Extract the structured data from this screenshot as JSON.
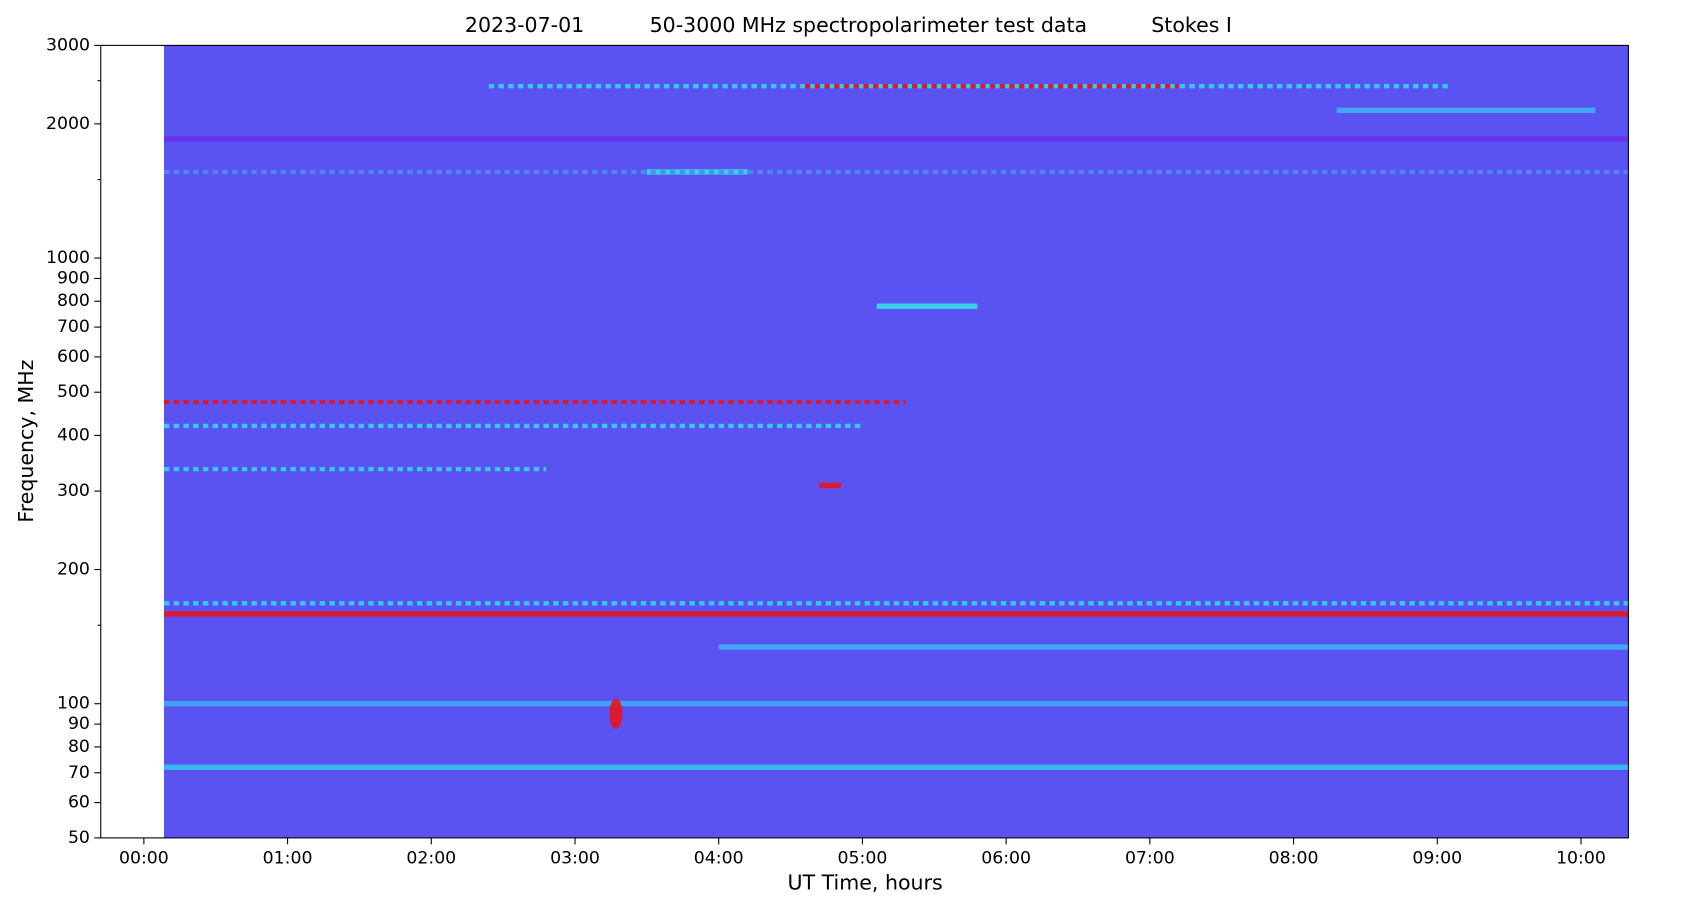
{
  "chart_data": {
    "type": "spectrogram",
    "title_parts": [
      "2023-07-01",
      "50-3000 MHz spectropolarimeter test data",
      "Stokes I"
    ],
    "xlabel": "UT Time, hours",
    "ylabel": "Frequency, MHz",
    "log_y": true,
    "xlim": [
      -0.3,
      10.33
    ],
    "ylim": [
      50,
      3000
    ],
    "xticks": [
      {
        "value": 0,
        "label": "00:00"
      },
      {
        "value": 1,
        "label": "01:00"
      },
      {
        "value": 2,
        "label": "02:00"
      },
      {
        "value": 3,
        "label": "03:00"
      },
      {
        "value": 4,
        "label": "04:00"
      },
      {
        "value": 5,
        "label": "05:00"
      },
      {
        "value": 6,
        "label": "06:00"
      },
      {
        "value": 7,
        "label": "07:00"
      },
      {
        "value": 8,
        "label": "08:00"
      },
      {
        "value": 9,
        "label": "09:00"
      },
      {
        "value": 10,
        "label": "10:00"
      }
    ],
    "yticks": [
      50,
      60,
      70,
      80,
      90,
      100,
      200,
      300,
      400,
      500,
      600,
      700,
      800,
      900,
      1000,
      2000,
      3000
    ],
    "minor_yticks": [
      150,
      1500,
      2500
    ],
    "data_span": [
      0.14,
      10.33
    ],
    "background_color": "#5b52f2",
    "features": [
      {
        "freq": 2430,
        "x": [
          2.4,
          9.1
        ],
        "color": "#2fd8f0",
        "style": "dotted"
      },
      {
        "freq": 2430,
        "x": [
          4.6,
          7.2
        ],
        "color": "#e8141c",
        "style": "dotted"
      },
      {
        "freq": 2145,
        "x": [
          8.3,
          10.1
        ],
        "color": "#3fb0f5",
        "style": "solid"
      },
      {
        "freq": 1850,
        "x": [
          0.14,
          10.33
        ],
        "color": "#6a2ef0",
        "style": "solid"
      },
      {
        "freq": 1560,
        "x": [
          3.5,
          4.2
        ],
        "color": "#35e0e8",
        "style": "solid"
      },
      {
        "freq": 1560,
        "x": [
          0.14,
          10.33
        ],
        "color": "#4a8cf5",
        "style": "dotted"
      },
      {
        "freq": 780,
        "x": [
          5.1,
          5.8
        ],
        "color": "#35e0e8",
        "style": "solid"
      },
      {
        "freq": 475,
        "x": [
          0.14,
          5.3
        ],
        "color": "#e8141c",
        "style": "dotted"
      },
      {
        "freq": 420,
        "x": [
          0.14,
          5.0
        ],
        "color": "#2fd8f0",
        "style": "dotted"
      },
      {
        "freq": 336,
        "x": [
          0.14,
          2.8
        ],
        "color": "#2fd8f0",
        "style": "dotted"
      },
      {
        "freq": 309,
        "x": [
          4.7,
          4.85
        ],
        "color": "#e8141c",
        "style": "solid"
      },
      {
        "freq": 168,
        "x": [
          0.14,
          10.33
        ],
        "color": "#2fd8f0",
        "style": "dotted"
      },
      {
        "freq": 159,
        "x": [
          0.14,
          10.33
        ],
        "color": "#e8141c",
        "style": "solid"
      },
      {
        "freq": 134,
        "x": [
          4.0,
          10.33
        ],
        "color": "#3fb0f5",
        "style": "solid"
      },
      {
        "freq": 100,
        "x": [
          0.14,
          10.33
        ],
        "color": "#3fa8f5",
        "style": "solid"
      },
      {
        "freq": 95,
        "x": [
          3.25,
          3.32
        ],
        "color": "#e8141c",
        "style": "burst"
      },
      {
        "freq": 72,
        "x": [
          0.14,
          10.33
        ],
        "color": "#36c4f0",
        "style": "solid"
      }
    ]
  }
}
